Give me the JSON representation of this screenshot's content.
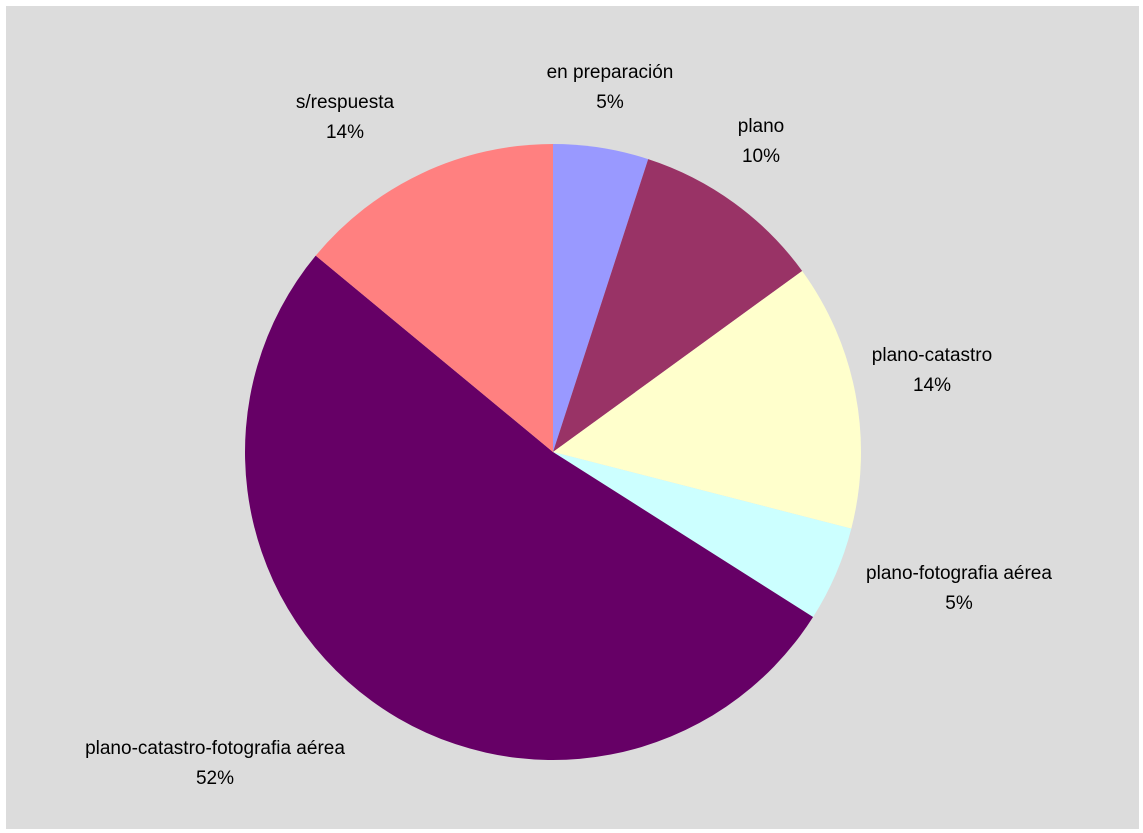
{
  "chart_data": {
    "type": "pie",
    "slices": [
      {
        "label": "en preparación",
        "percent": 5,
        "display": "5%",
        "color": "#9999ff"
      },
      {
        "label": "plano",
        "percent": 10,
        "display": "10%",
        "color": "#993366"
      },
      {
        "label": "plano-catastro",
        "percent": 14,
        "display": "14%",
        "color": "#ffffcc"
      },
      {
        "label": "plano-fotografia aérea",
        "percent": 5,
        "display": "5%",
        "color": "#ccffff"
      },
      {
        "label": "plano-catastro-fotografia aérea",
        "percent": 52,
        "display": "52%",
        "color": "#660066"
      },
      {
        "label": "s/respuesta",
        "percent": 14,
        "display": "14%",
        "color": "#ff8080"
      }
    ],
    "start_angle": "12 o'clock",
    "direction": "clockwise",
    "legend": "none"
  }
}
